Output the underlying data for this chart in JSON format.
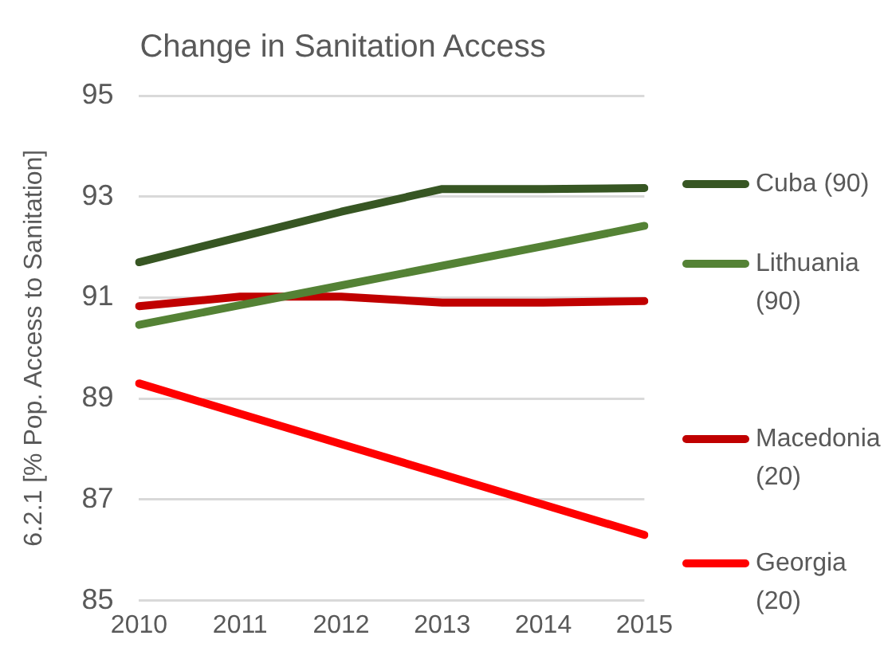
{
  "chart_data": {
    "type": "line",
    "title": "Change in Sanitation Access",
    "ylabel": "6.2.1 [% Pop. Access to Sanitation]",
    "categories": [
      "2010",
      "2011",
      "2012",
      "2013",
      "2014",
      "2015"
    ],
    "series": [
      {
        "name": "Cuba (90)",
        "color": "#375623",
        "values": [
          91.7,
          92.2,
          92.7,
          93.15,
          93.15,
          93.17
        ]
      },
      {
        "name": "Lithuania (90)",
        "color": "#548235",
        "values": [
          90.46,
          90.85,
          91.24,
          91.63,
          92.02,
          92.42
        ]
      },
      {
        "name": "Macedonia (20)",
        "color": "#c00000",
        "values": [
          90.83,
          91.02,
          91.02,
          90.9,
          90.9,
          90.93
        ]
      },
      {
        "name": "Georgia (20)",
        "color": "#ff0000",
        "values": [
          89.3,
          88.7,
          88.1,
          87.5,
          86.9,
          86.3
        ]
      }
    ],
    "ylim": [
      85,
      95
    ],
    "yticks": [
      85,
      87,
      89,
      91,
      93,
      95
    ],
    "grid": "y",
    "legend": "right",
    "marker": "none",
    "line_style": "solid"
  }
}
